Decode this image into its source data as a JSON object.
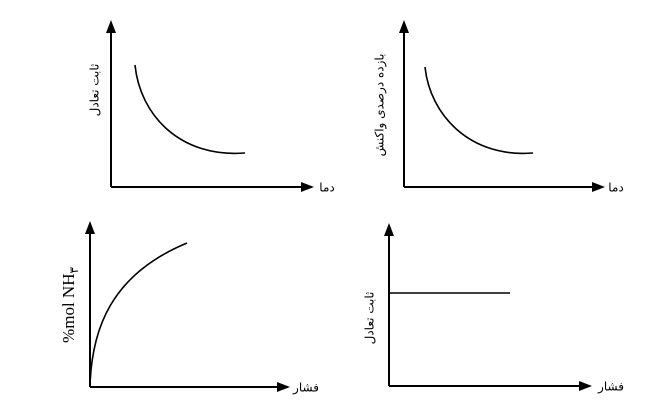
{
  "panels": [
    {
      "y_label": "ثابت تعادل",
      "x_label": "دما"
    },
    {
      "y_label": "بازده درصدی واکنش",
      "x_label": "دما"
    },
    {
      "y_label": "%mol NH",
      "y_label_subscript": "۳",
      "x_label": "فشار"
    },
    {
      "y_label": "ثابت تعادل",
      "x_label": "فشار"
    }
  ]
}
